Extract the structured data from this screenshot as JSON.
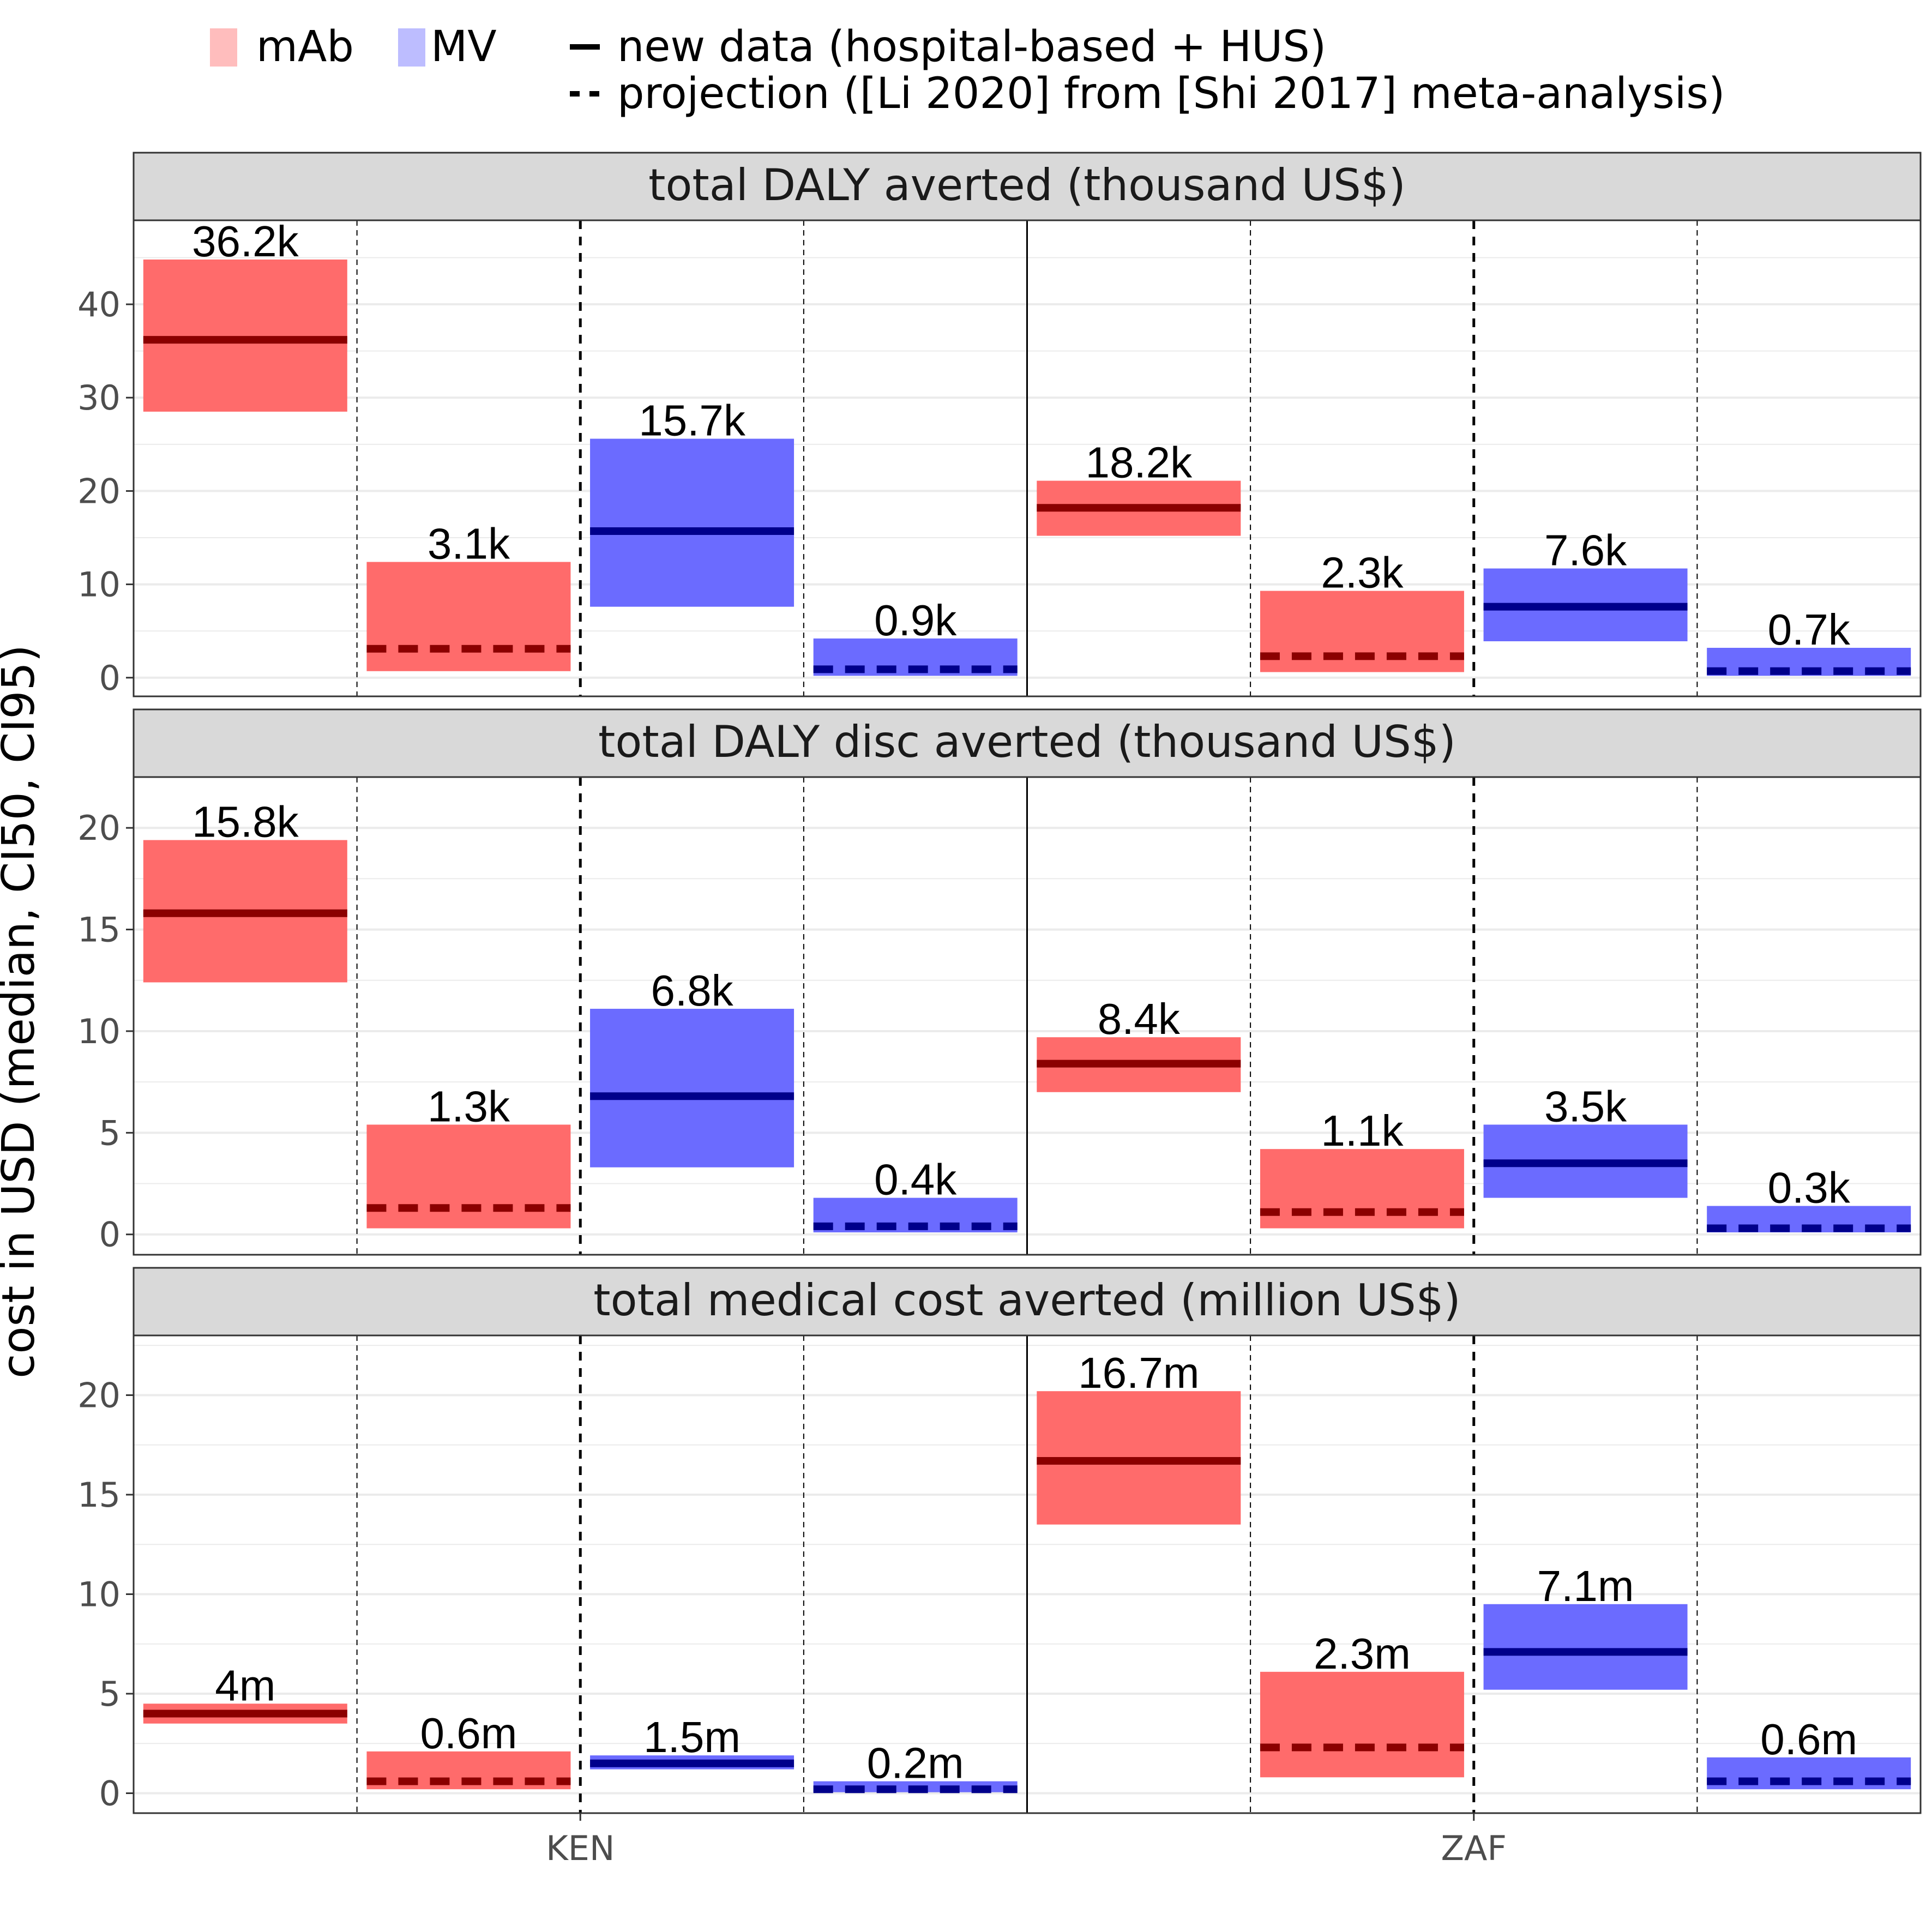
{
  "chart_data": {
    "type": "bar",
    "legend": {
      "fill_items": [
        {
          "label": "mAb",
          "color": "#ffbdbd"
        },
        {
          "label": "MV",
          "color": "#bdbdff"
        }
      ],
      "line_items": [
        {
          "label": "new data (hospital-based + HUS)",
          "style": "solid"
        },
        {
          "label": "projection ([Li 2020] from [Shi 2017] meta-analysis)",
          "style": "dashed"
        }
      ],
      "placement": "top"
    },
    "ylabel": "cost in USD (median, CI50, CI95)",
    "countries": [
      "KEN",
      "ZAF"
    ],
    "group_order": [
      "mAb / new data",
      "mAb / projection",
      "MV / new data",
      "MV / projection"
    ],
    "colors": {
      "mAb_fill": "#ff6b6b",
      "mAb_line": "#8b0000",
      "MV_fill": "#6b6bff",
      "MV_line": "#00008b",
      "strip_bg": "#d9d9d9",
      "grid": "#ebebeb"
    },
    "grid": true,
    "panels": [
      {
        "title": "total DALY averted (thousand US$)",
        "ylim": [
          -2,
          49
        ],
        "yticks": [
          0,
          10,
          20,
          30,
          40
        ],
        "bars": [
          {
            "country": "KEN",
            "intervention": "mAb",
            "source": "new data",
            "median": 36.2,
            "low": 28.5,
            "high": 44.8,
            "label": "36.2k"
          },
          {
            "country": "KEN",
            "intervention": "mAb",
            "source": "projection",
            "median": 3.1,
            "low": 0.7,
            "high": 12.4,
            "label": "3.1k"
          },
          {
            "country": "KEN",
            "intervention": "MV",
            "source": "new data",
            "median": 15.7,
            "low": 7.6,
            "high": 25.6,
            "label": "15.7k"
          },
          {
            "country": "KEN",
            "intervention": "MV",
            "source": "projection",
            "median": 0.9,
            "low": 0.2,
            "high": 4.2,
            "label": "0.9k"
          },
          {
            "country": "ZAF",
            "intervention": "mAb",
            "source": "new data",
            "median": 18.2,
            "low": 15.2,
            "high": 21.1,
            "label": "18.2k"
          },
          {
            "country": "ZAF",
            "intervention": "mAb",
            "source": "projection",
            "median": 2.3,
            "low": 0.6,
            "high": 9.3,
            "label": "2.3k"
          },
          {
            "country": "ZAF",
            "intervention": "MV",
            "source": "new data",
            "median": 7.6,
            "low": 3.9,
            "high": 11.7,
            "label": "7.6k"
          },
          {
            "country": "ZAF",
            "intervention": "MV",
            "source": "projection",
            "median": 0.7,
            "low": 0.2,
            "high": 3.2,
            "label": "0.7k"
          }
        ]
      },
      {
        "title": "total DALY disc averted (thousand US$)",
        "ylim": [
          -1,
          22.5
        ],
        "yticks": [
          0,
          5,
          10,
          15,
          20
        ],
        "bars": [
          {
            "country": "KEN",
            "intervention": "mAb",
            "source": "new data",
            "median": 15.8,
            "low": 12.4,
            "high": 19.4,
            "label": "15.8k"
          },
          {
            "country": "KEN",
            "intervention": "mAb",
            "source": "projection",
            "median": 1.3,
            "low": 0.3,
            "high": 5.4,
            "label": "1.3k"
          },
          {
            "country": "KEN",
            "intervention": "MV",
            "source": "new data",
            "median": 6.8,
            "low": 3.3,
            "high": 11.1,
            "label": "6.8k"
          },
          {
            "country": "KEN",
            "intervention": "MV",
            "source": "projection",
            "median": 0.4,
            "low": 0.1,
            "high": 1.8,
            "label": "0.4k"
          },
          {
            "country": "ZAF",
            "intervention": "mAb",
            "source": "new data",
            "median": 8.4,
            "low": 7.0,
            "high": 9.7,
            "label": "8.4k"
          },
          {
            "country": "ZAF",
            "intervention": "mAb",
            "source": "projection",
            "median": 1.1,
            "low": 0.3,
            "high": 4.2,
            "label": "1.1k"
          },
          {
            "country": "ZAF",
            "intervention": "MV",
            "source": "new data",
            "median": 3.5,
            "low": 1.8,
            "high": 5.4,
            "label": "3.5k"
          },
          {
            "country": "ZAF",
            "intervention": "MV",
            "source": "projection",
            "median": 0.3,
            "low": 0.1,
            "high": 1.4,
            "label": "0.3k"
          }
        ]
      },
      {
        "title": "total medical cost averted (million US$)",
        "ylim": [
          -1,
          23
        ],
        "yticks": [
          0,
          5,
          10,
          15,
          20
        ],
        "bars": [
          {
            "country": "KEN",
            "intervention": "mAb",
            "source": "new data",
            "median": 4.0,
            "low": 3.5,
            "high": 4.5,
            "label": "4m"
          },
          {
            "country": "KEN",
            "intervention": "mAb",
            "source": "projection",
            "median": 0.6,
            "low": 0.2,
            "high": 2.1,
            "label": "0.6m"
          },
          {
            "country": "KEN",
            "intervention": "MV",
            "source": "new data",
            "median": 1.5,
            "low": 1.2,
            "high": 1.9,
            "label": "1.5m"
          },
          {
            "country": "KEN",
            "intervention": "MV",
            "source": "projection",
            "median": 0.2,
            "low": 0.05,
            "high": 0.6,
            "label": "0.2m"
          },
          {
            "country": "ZAF",
            "intervention": "mAb",
            "source": "new data",
            "median": 16.7,
            "low": 13.5,
            "high": 20.2,
            "label": "16.7m"
          },
          {
            "country": "ZAF",
            "intervention": "mAb",
            "source": "projection",
            "median": 2.3,
            "low": 0.8,
            "high": 6.1,
            "label": "2.3m"
          },
          {
            "country": "ZAF",
            "intervention": "MV",
            "source": "new data",
            "median": 7.1,
            "low": 5.2,
            "high": 9.5,
            "label": "7.1m"
          },
          {
            "country": "ZAF",
            "intervention": "MV",
            "source": "projection",
            "median": 0.6,
            "low": 0.2,
            "high": 1.8,
            "label": "0.6m"
          }
        ]
      }
    ]
  }
}
